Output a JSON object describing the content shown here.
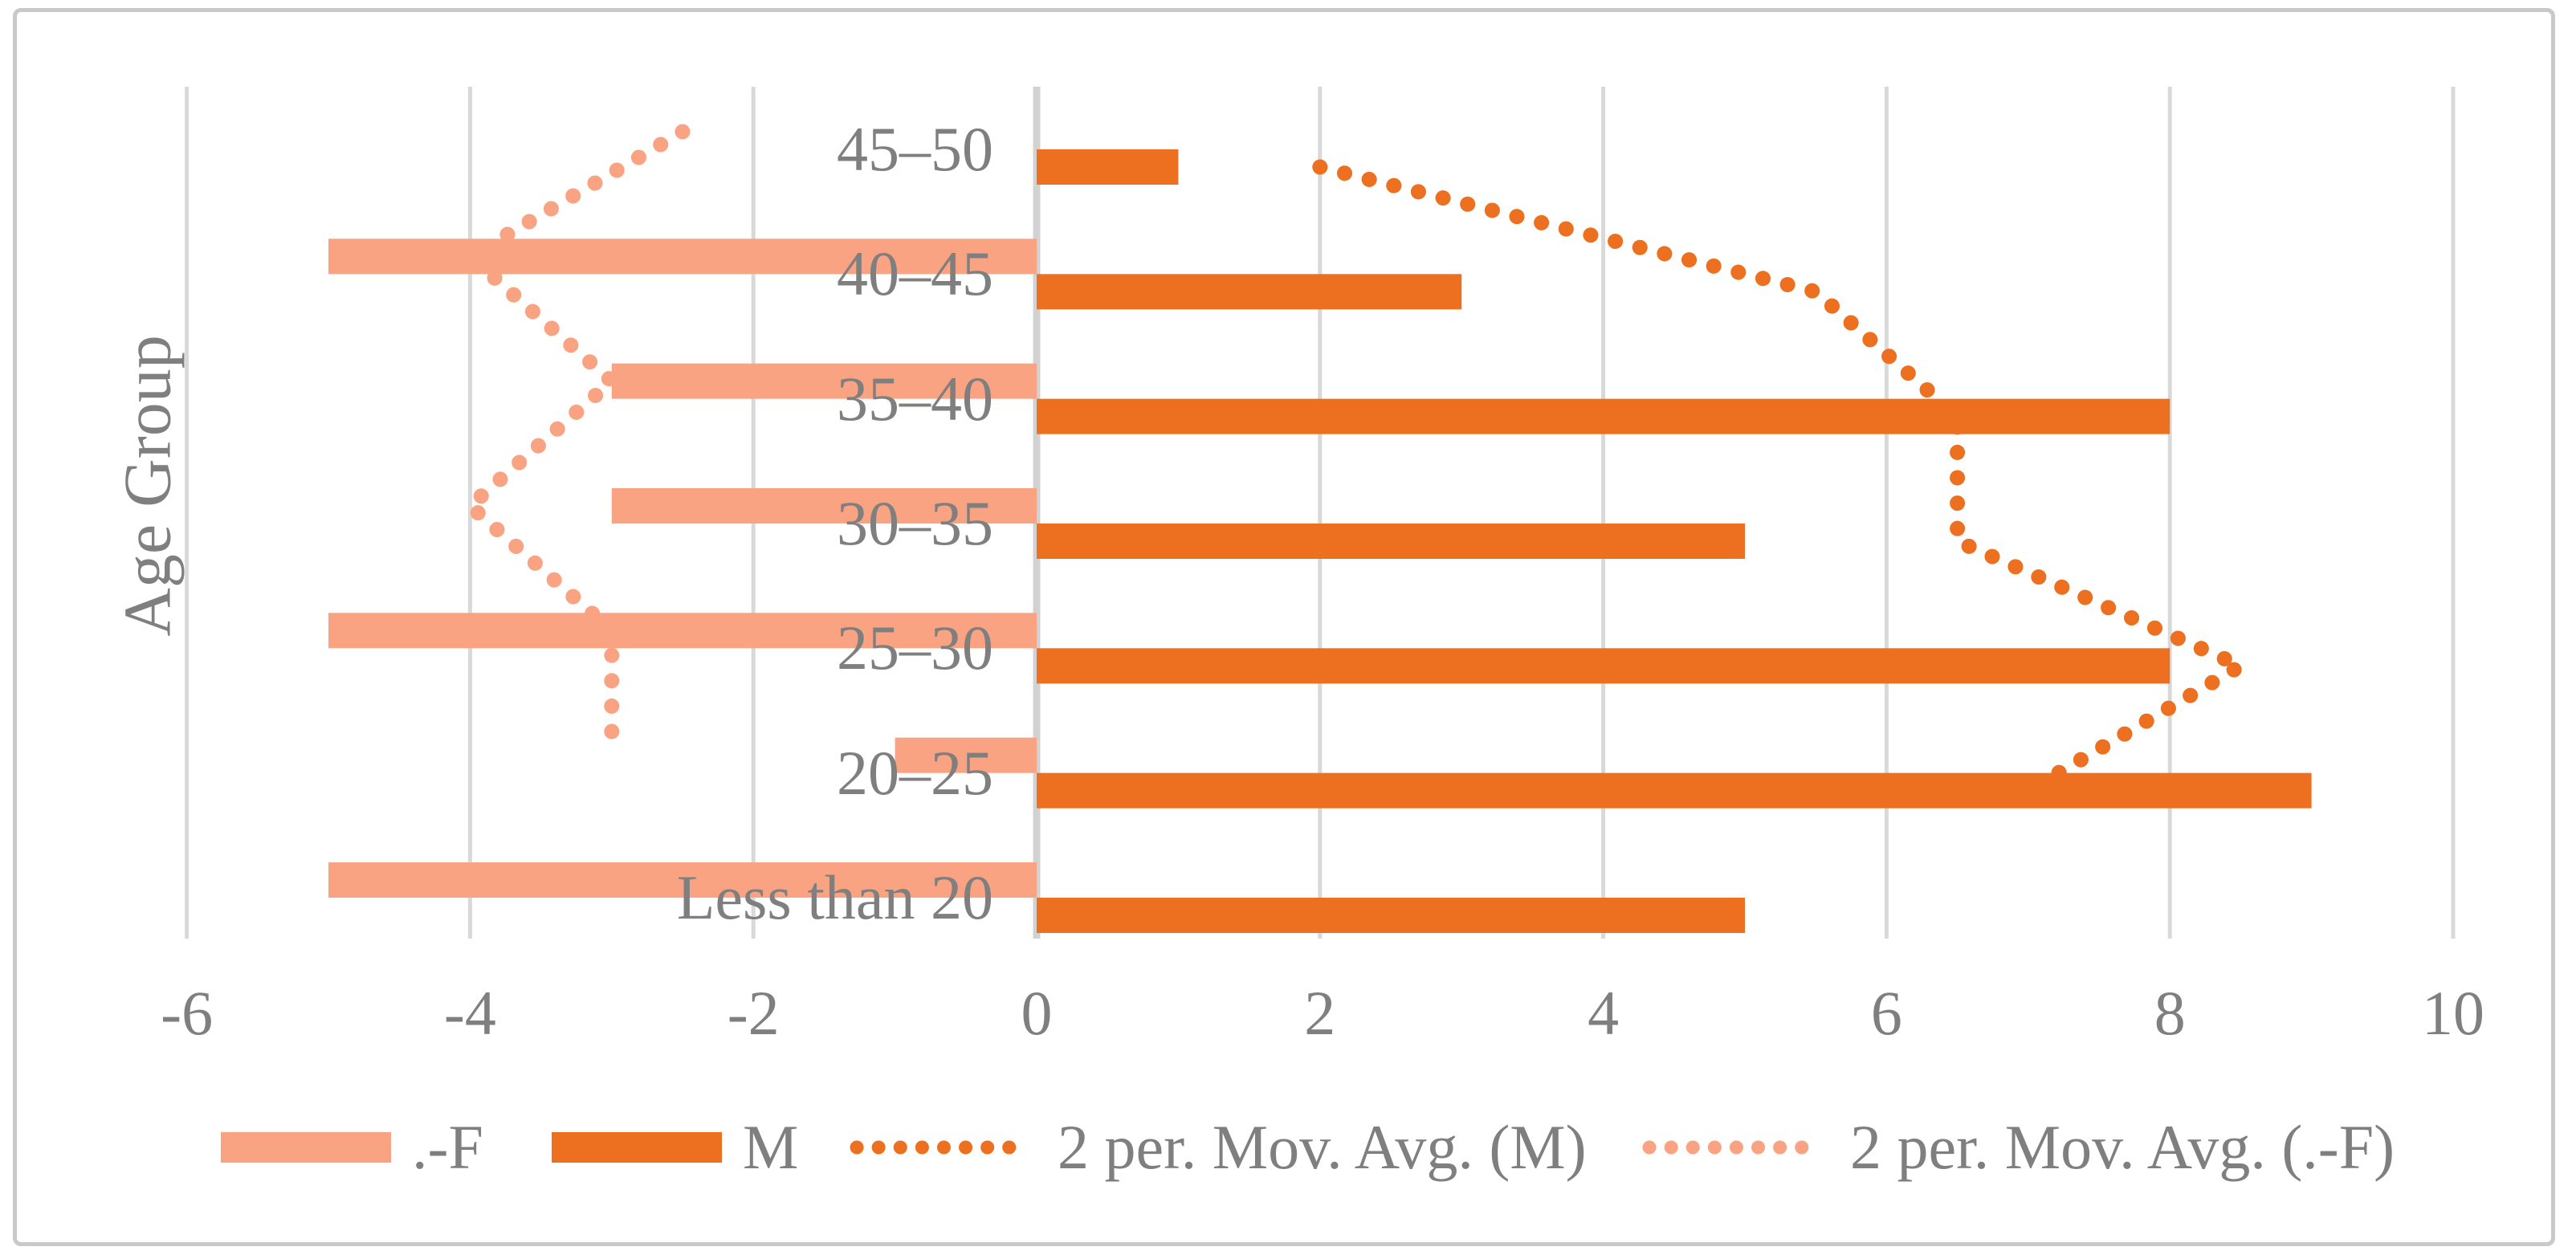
{
  "window": {
    "background": "#ffffff",
    "border_color": "#c9c9c9"
  },
  "text_color": "#7f7f7f",
  "gridline_color": "#d9d9d9",
  "zero_axis_color": "#d2d2d2",
  "chart_data": {
    "type": "bar",
    "subtype": "horizontal-population-pyramid",
    "title": "",
    "ylabel": "Age Group",
    "xlabel": "",
    "xlim": [
      -6,
      10
    ],
    "x_ticks": [
      -6,
      -4,
      -2,
      0,
      2,
      4,
      6,
      8,
      10
    ],
    "grid": "vertical gridlines every 2 units",
    "legend_position": "bottom",
    "categories_top_to_bottom": [
      "45–50",
      "40–45",
      "35–40",
      "30–35",
      "25–30",
      "20–25",
      "Less than 20"
    ],
    "series": [
      {
        "name": ".-F",
        "side": "negative",
        "color": "#faa383",
        "values_top_to_bottom": [
          0,
          -5,
          -3,
          -3,
          -5,
          -1,
          -5
        ]
      },
      {
        "name": "M",
        "side": "positive",
        "color": "#ed7021",
        "values_top_to_bottom": [
          1,
          3,
          8,
          5,
          8,
          9,
          5
        ]
      }
    ],
    "trendlines": [
      {
        "name": "2 per. Mov. Avg. (M)",
        "style": "dotted",
        "color": "#ed7021",
        "values_top_to_bottom": [
          2,
          5.5,
          6.5,
          6.5,
          8.5,
          7,
          null
        ]
      },
      {
        "name": "2 per. Mov. Avg. (.-F)",
        "style": "dotted",
        "color": "#faa383",
        "values_top_to_bottom": [
          -2.5,
          -4,
          -3,
          -4,
          -3,
          -3,
          null
        ]
      }
    ]
  },
  "legend": {
    "items": [
      {
        "label": ".-F",
        "swatch": "rect",
        "color": "#faa383"
      },
      {
        "label": "M",
        "swatch": "rect",
        "color": "#ed7021"
      },
      {
        "label": "2 per. Mov. Avg. (M)",
        "swatch": "dotted-line",
        "color": "#ed7021"
      },
      {
        "label": "2 per. Mov. Avg. (.-F)",
        "swatch": "dotted-line",
        "color": "#faa383"
      }
    ]
  }
}
